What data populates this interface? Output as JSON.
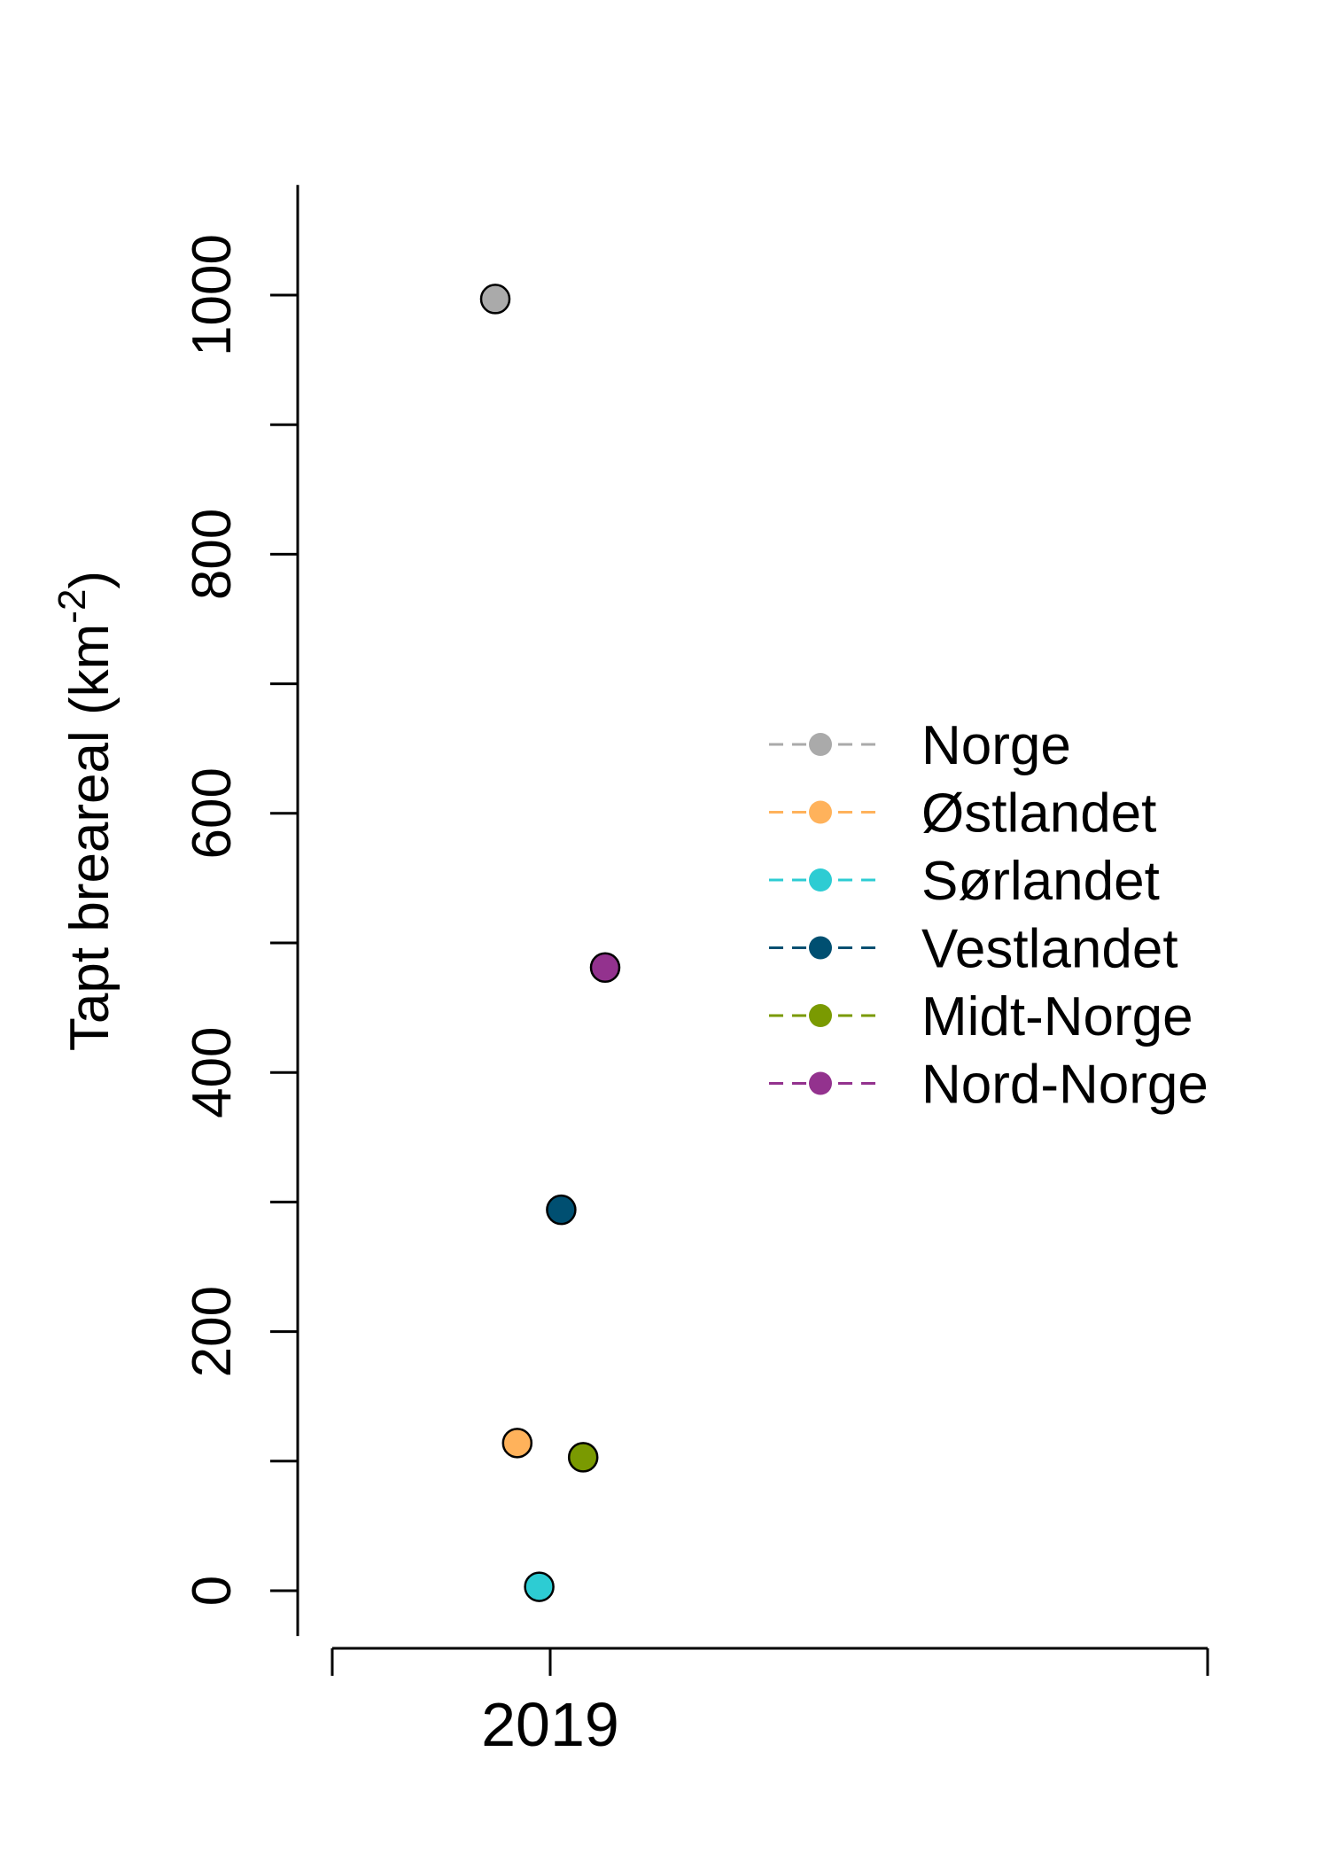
{
  "chart_data": {
    "type": "scatter",
    "ylabel": "Tapt breareal (km",
    "ylabel_superscript": "-2",
    "ylabel_close": ")",
    "xlabel": "",
    "ylim": [
      -35,
      1085
    ],
    "y_ticks": [
      0,
      100,
      200,
      300,
      400,
      500,
      600,
      700,
      800,
      900,
      1000
    ],
    "y_tick_labels": [
      "0",
      "200",
      "400",
      "600",
      "800",
      "1000"
    ],
    "y_tick_label_values": [
      0,
      200,
      400,
      600,
      800,
      1000
    ],
    "x_tick_labels": [
      "2019"
    ],
    "x_category": 2019,
    "grid": false,
    "legend_position": "right",
    "series": [
      {
        "name": "Norge",
        "color": "#AAAAAA",
        "x": 2019,
        "x_jitter": -0.25,
        "y": 997
      },
      {
        "name": "Østlandet",
        "color": "#FFB25B",
        "x": 2019,
        "x_jitter": -0.15,
        "y": 114
      },
      {
        "name": "Sørlandet",
        "color": "#2DCCD3",
        "x": 2019,
        "x_jitter": -0.05,
        "y": 3
      },
      {
        "name": "Vestlandet",
        "color": "#004F71",
        "x": 2019,
        "x_jitter": 0.05,
        "y": 294
      },
      {
        "name": "Midt-Norge",
        "color": "#7A9A01",
        "x": 2019,
        "x_jitter": 0.15,
        "y": 103
      },
      {
        "name": "Nord-Norge",
        "color": "#93328E",
        "x": 2019,
        "x_jitter": 0.25,
        "y": 481
      }
    ]
  }
}
